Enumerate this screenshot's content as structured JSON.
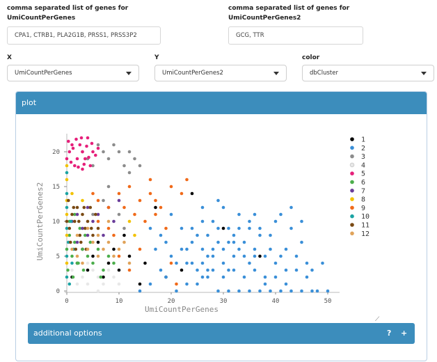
{
  "genes1": {
    "label_line1": "comma separated list of genes for",
    "label_line2": "UmiCountPerGenes",
    "value": "CPA1, CTRB1, PLA2G1B, PRSS1, PRSS3P2"
  },
  "genes2": {
    "label_line1": "comma separated list of genes for",
    "label_line2": "UmiCountPerGenes2",
    "value": "GCG, TTR"
  },
  "x_select": {
    "label": "X",
    "value": "UmiCountPerGenes"
  },
  "y_select": {
    "label": "Y",
    "value": "UmiCountPerGenes2"
  },
  "color_select": {
    "label": "color",
    "value": "dbCluster"
  },
  "plot_box": {
    "title": "plot"
  },
  "options_box": {
    "title": "additional options",
    "help_icon": "?",
    "expand_icon": "+"
  },
  "chart_data": {
    "type": "scatter",
    "xlabel": "UmiCountPerGenes",
    "ylabel": "UmiCountPerGenes2",
    "xlim": [
      0,
      52
    ],
    "ylim": [
      0,
      22
    ],
    "xticks": [
      "0",
      "10",
      "20",
      "30",
      "40",
      "50"
    ],
    "yticks": [
      "0",
      "5",
      "10",
      "15",
      "20"
    ],
    "legend_position": "right",
    "series": [
      {
        "name": "1",
        "color": "#000000",
        "points": [
          [
            1,
            2
          ],
          [
            2,
            4
          ],
          [
            3,
            6
          ],
          [
            4,
            3
          ],
          [
            5,
            5
          ],
          [
            6,
            7
          ],
          [
            7,
            2
          ],
          [
            8,
            4
          ],
          [
            9,
            6
          ],
          [
            10,
            3
          ],
          [
            12,
            5
          ],
          [
            15,
            4
          ],
          [
            19,
            2
          ],
          [
            22,
            3
          ],
          [
            24,
            14
          ],
          [
            30,
            9
          ],
          [
            37,
            5
          ],
          [
            14,
            1
          ],
          [
            17,
            12
          ],
          [
            11,
            8
          ]
        ]
      },
      {
        "name": "2",
        "color": "#3a8fd8",
        "points": [
          [
            14,
            0
          ],
          [
            16,
            1
          ],
          [
            18,
            3
          ],
          [
            20,
            5
          ],
          [
            22,
            6
          ],
          [
            24,
            4
          ],
          [
            26,
            2
          ],
          [
            28,
            6
          ],
          [
            30,
            4
          ],
          [
            32,
            3
          ],
          [
            34,
            7
          ],
          [
            36,
            5
          ],
          [
            38,
            2
          ],
          [
            40,
            4
          ],
          [
            42,
            1
          ],
          [
            44,
            3
          ],
          [
            46,
            2
          ],
          [
            48,
            0
          ],
          [
            50,
            0
          ],
          [
            25,
            1
          ],
          [
            27,
            8
          ],
          [
            29,
            9
          ],
          [
            31,
            7
          ],
          [
            33,
            6
          ],
          [
            35,
            9
          ],
          [
            37,
            8
          ],
          [
            39,
            6
          ],
          [
            41,
            5
          ],
          [
            43,
            9
          ],
          [
            45,
            7
          ],
          [
            26,
            4
          ],
          [
            28,
            3
          ],
          [
            30,
            2
          ],
          [
            32,
            5
          ],
          [
            34,
            2
          ],
          [
            36,
            3
          ],
          [
            38,
            5
          ],
          [
            40,
            2
          ],
          [
            42,
            3
          ],
          [
            44,
            5
          ],
          [
            21,
            0
          ],
          [
            23,
            1
          ],
          [
            25,
            3
          ],
          [
            27,
            5
          ],
          [
            29,
            7
          ],
          [
            31,
            9
          ],
          [
            33,
            11
          ],
          [
            35,
            10
          ],
          [
            37,
            9
          ],
          [
            39,
            8
          ],
          [
            41,
            11
          ],
          [
            43,
            12
          ],
          [
            45,
            10
          ],
          [
            47,
            3
          ],
          [
            49,
            4
          ],
          [
            28,
            10
          ],
          [
            30,
            12
          ],
          [
            32,
            8
          ],
          [
            34,
            5
          ],
          [
            36,
            6
          ],
          [
            19,
            2
          ],
          [
            21,
            4
          ],
          [
            23,
            6
          ],
          [
            25,
            8
          ],
          [
            27,
            2
          ],
          [
            29,
            0
          ],
          [
            31,
            0
          ],
          [
            33,
            0
          ],
          [
            35,
            0
          ],
          [
            37,
            0
          ],
          [
            39,
            0
          ],
          [
            41,
            0
          ],
          [
            43,
            0
          ],
          [
            45,
            0
          ],
          [
            47,
            0
          ],
          [
            26,
            12
          ],
          [
            29,
            13
          ],
          [
            33,
            9
          ],
          [
            36,
            11
          ],
          [
            40,
            10
          ],
          [
            31,
            3
          ],
          [
            35,
            4
          ],
          [
            38,
            1
          ],
          [
            42,
            6
          ],
          [
            46,
            4
          ],
          [
            24,
            7
          ],
          [
            26,
            6
          ],
          [
            28,
            5
          ],
          [
            30,
            6
          ],
          [
            32,
            7
          ],
          [
            22,
            9
          ],
          [
            24,
            9
          ],
          [
            26,
            10
          ],
          [
            20,
            11
          ],
          [
            18,
            8
          ],
          [
            16,
            9
          ],
          [
            17,
            6
          ],
          [
            19,
            7
          ],
          [
            23,
            4
          ],
          [
            27,
            3
          ]
        ]
      },
      {
        "name": "3",
        "color": "#8c8c8c",
        "points": [
          [
            3,
            20
          ],
          [
            4,
            19
          ],
          [
            5,
            18
          ],
          [
            6,
            21
          ],
          [
            7,
            20
          ],
          [
            8,
            19
          ],
          [
            9,
            21
          ],
          [
            10,
            20
          ],
          [
            11,
            18
          ],
          [
            12,
            20
          ],
          [
            13,
            19
          ],
          [
            14,
            18
          ],
          [
            12,
            17
          ],
          [
            8,
            15
          ],
          [
            10,
            11
          ],
          [
            11,
            9
          ],
          [
            5,
            11
          ],
          [
            7,
            13
          ]
        ]
      },
      {
        "name": "4",
        "color": "#e8e8e8",
        "points": [
          [
            2,
            1
          ],
          [
            3,
            2
          ],
          [
            4,
            1
          ],
          [
            5,
            3
          ],
          [
            6,
            2
          ],
          [
            7,
            1
          ],
          [
            8,
            3
          ],
          [
            9,
            2
          ],
          [
            10,
            1
          ],
          [
            1,
            3
          ],
          [
            4,
            4
          ],
          [
            6,
            0
          ]
        ]
      },
      {
        "name": "5",
        "color": "#e6207a",
        "points": [
          [
            0,
            19
          ],
          [
            0.5,
            20
          ],
          [
            1,
            21
          ],
          [
            1.5,
            18
          ],
          [
            2,
            19
          ],
          [
            2.5,
            21
          ],
          [
            3,
            20
          ],
          [
            3.5,
            19
          ],
          [
            4,
            22
          ],
          [
            4.5,
            18
          ],
          [
            5,
            20
          ],
          [
            0.8,
            18.5
          ],
          [
            1.2,
            20.5
          ],
          [
            2.2,
            17.8
          ],
          [
            2.8,
            22
          ],
          [
            3.3,
            18.2
          ],
          [
            3.8,
            20.8
          ],
          [
            4.2,
            19.2
          ],
          [
            4.8,
            21.2
          ],
          [
            5.5,
            19.5
          ],
          [
            6,
            20.5
          ],
          [
            0.3,
            21.5
          ],
          [
            1.8,
            21.8
          ],
          [
            3,
            17.5
          ]
        ]
      },
      {
        "name": "6",
        "color": "#4cae4c",
        "points": [
          [
            0,
            6
          ],
          [
            0.5,
            8
          ],
          [
            1,
            5
          ],
          [
            1.5,
            7
          ],
          [
            2,
            4
          ],
          [
            2.5,
            9
          ],
          [
            3,
            6
          ],
          [
            3.5,
            8
          ],
          [
            4,
            5
          ],
          [
            4.5,
            7
          ],
          [
            5,
            4
          ],
          [
            6,
            6
          ],
          [
            7,
            3
          ],
          [
            8,
            5
          ],
          [
            0.2,
            3
          ],
          [
            1.2,
            2
          ],
          [
            2.2,
            4
          ],
          [
            3.2,
            3
          ],
          [
            6.5,
            2
          ],
          [
            9,
            4
          ],
          [
            0.5,
            10
          ],
          [
            1.5,
            11
          ]
        ]
      },
      {
        "name": "7",
        "color": "#6a3d9a",
        "points": [
          [
            1,
            10
          ],
          [
            2,
            11
          ],
          [
            3,
            9
          ],
          [
            4,
            12
          ],
          [
            5,
            10
          ],
          [
            6,
            11
          ],
          [
            7,
            8
          ],
          [
            8,
            12
          ],
          [
            9,
            10
          ],
          [
            10,
            13
          ],
          [
            2,
            7
          ],
          [
            4,
            8
          ]
        ]
      },
      {
        "name": "8",
        "color": "#f2c200",
        "points": [
          [
            0,
            13
          ],
          [
            0,
            16
          ],
          [
            0,
            18
          ],
          [
            1,
            14
          ],
          [
            0,
            11
          ],
          [
            0,
            8
          ],
          [
            0,
            4
          ],
          [
            12,
            10
          ],
          [
            13,
            8
          ],
          [
            3,
            13
          ]
        ]
      },
      {
        "name": "9",
        "color": "#f06a1a",
        "points": [
          [
            5,
            14
          ],
          [
            6,
            13
          ],
          [
            8,
            12
          ],
          [
            10,
            14
          ],
          [
            12,
            15
          ],
          [
            14,
            13
          ],
          [
            16,
            14
          ],
          [
            17,
            13
          ],
          [
            18,
            12
          ],
          [
            20,
            15
          ],
          [
            22,
            14
          ],
          [
            23,
            16
          ],
          [
            13,
            11
          ],
          [
            15,
            10
          ],
          [
            17,
            11
          ],
          [
            8,
            9
          ],
          [
            21,
            1
          ],
          [
            10,
            5
          ],
          [
            14,
            6
          ],
          [
            20,
            4
          ],
          [
            12,
            3
          ],
          [
            19,
            9
          ],
          [
            6,
            10
          ],
          [
            9,
            8
          ],
          [
            16,
            16
          ],
          [
            11,
            12
          ]
        ]
      },
      {
        "name": "10",
        "color": "#1aa3a3",
        "points": [
          [
            0,
            2
          ],
          [
            0,
            5
          ],
          [
            0,
            9
          ],
          [
            0,
            12
          ],
          [
            0.5,
            1
          ],
          [
            1,
            4
          ],
          [
            0.3,
            7
          ],
          [
            0.8,
            10
          ],
          [
            1.3,
            6
          ],
          [
            0,
            14
          ],
          [
            0,
            17
          ]
        ]
      },
      {
        "name": "11",
        "color": "#7a4a14",
        "points": [
          [
            0,
            10
          ],
          [
            0.5,
            9
          ],
          [
            1,
            11
          ],
          [
            1.5,
            10
          ],
          [
            2,
            12
          ],
          [
            2.5,
            8
          ],
          [
            3,
            11
          ],
          [
            3.5,
            9
          ],
          [
            4,
            10
          ],
          [
            4.5,
            12
          ],
          [
            5,
            8
          ],
          [
            0.3,
            13
          ],
          [
            1.3,
            12
          ],
          [
            2.3,
            10
          ],
          [
            3.3,
            12
          ],
          [
            0.7,
            7
          ],
          [
            1.7,
            6
          ],
          [
            2.7,
            7
          ],
          [
            3.7,
            6
          ],
          [
            4.7,
            9
          ],
          [
            5.5,
            11
          ],
          [
            6,
            9
          ]
        ]
      },
      {
        "name": "12",
        "color": "#e0a35a",
        "points": [
          [
            1,
            6
          ],
          [
            2,
            5
          ],
          [
            3,
            4
          ],
          [
            4,
            6
          ],
          [
            5,
            7
          ],
          [
            6,
            5
          ],
          [
            7,
            6
          ],
          [
            8,
            7
          ],
          [
            9,
            5
          ],
          [
            10,
            6
          ],
          [
            11,
            7
          ],
          [
            12,
            4
          ],
          [
            2,
            8
          ],
          [
            4,
            9
          ],
          [
            6,
            8
          ],
          [
            8,
            10
          ]
        ]
      }
    ]
  }
}
